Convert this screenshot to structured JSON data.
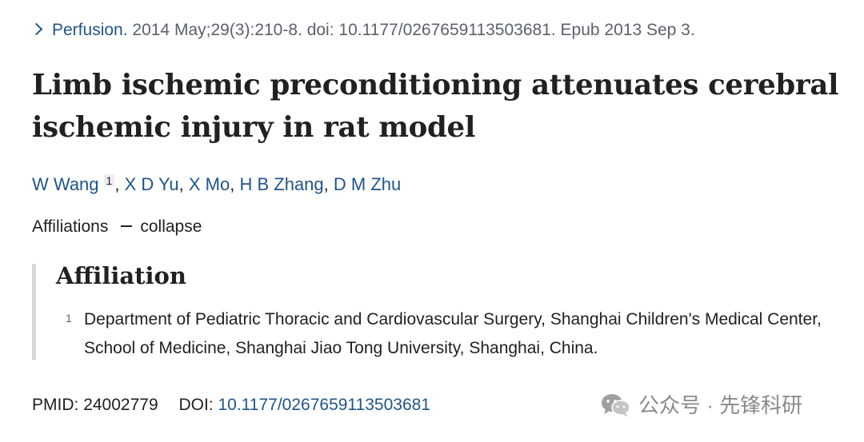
{
  "citation": {
    "journal": "Perfusion.",
    "details": " 2014 May;29(3):210-8. doi: 10.1177/0267659113503681. Epub 2013 Sep 3."
  },
  "title": "Limb ischemic preconditioning attenuates cerebral ischemic injury in rat model",
  "authors": {
    "first": "W Wang",
    "first_affil_num": "1",
    "sep": ", ",
    "rest": [
      "X D Yu",
      "X Mo",
      "H B Zhang",
      "D M Zhu"
    ]
  },
  "affiliations_toggle": {
    "label": "Affiliations",
    "action": "collapse"
  },
  "affiliation": {
    "heading": "Affiliation",
    "number": "1",
    "text": "Department of Pediatric Thoracic and Cardiovascular Surgery, Shanghai Children's Medical Center, School of Medicine, Shanghai Jiao Tong University, Shanghai, China."
  },
  "identifiers": {
    "pmid_label": "PMID:",
    "pmid": "24002779",
    "doi_label": "DOI:",
    "doi": "10.1177/0267659113503681"
  },
  "watermark": {
    "text": "公众号 · 先锋科研"
  },
  "colors": {
    "link": "#20558a",
    "text": "#212121",
    "muted": "#5b616b",
    "border": "#d7d7d7"
  }
}
